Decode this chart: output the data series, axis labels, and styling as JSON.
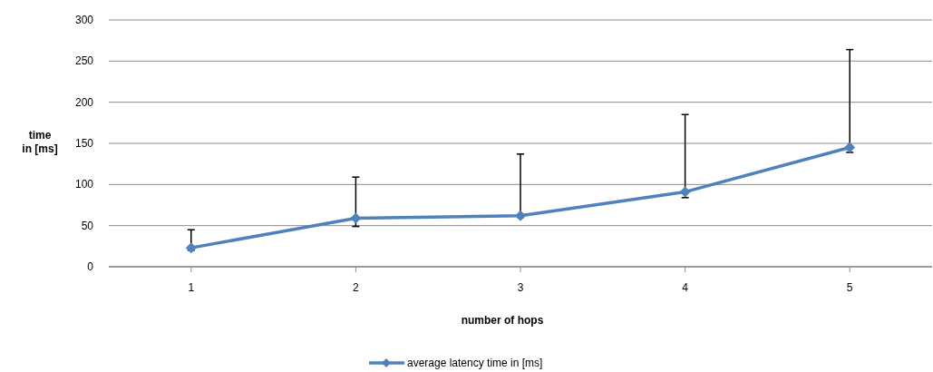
{
  "chart_data": {
    "type": "line",
    "xlabel": "number of hops",
    "ylabel": "time in [ms]",
    "categories": [
      "1",
      "2",
      "3",
      "4",
      "5"
    ],
    "series": [
      {
        "name": "average latency time in [ms]",
        "color": "#4f81bd",
        "values": [
          23,
          59,
          62,
          91,
          145
        ],
        "errors": [
          [
            20,
            45
          ],
          [
            49,
            109
          ],
          [
            60,
            137
          ],
          [
            84,
            185
          ],
          [
            139,
            264
          ]
        ]
      }
    ],
    "ylim": [
      0,
      300
    ],
    "yticks": [
      0,
      50,
      100,
      150,
      200,
      250,
      300
    ],
    "grid": "y",
    "legend": "bottom",
    "marker": "diamond",
    "line_style": "solid"
  }
}
